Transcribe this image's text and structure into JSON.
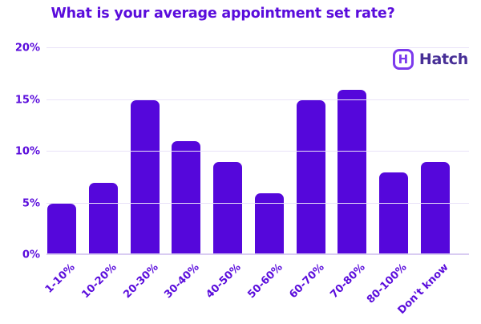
{
  "header": {
    "title": "What is your average appointment set rate?"
  },
  "logo": {
    "text": "Hatch",
    "icon_glyph": "H",
    "icon_color": "#7C3AED",
    "text_color": "#472F96"
  },
  "colors": {
    "bar": "#5507DB",
    "title_text": "#5A0CDC",
    "axis_text": "#5A0CDC",
    "gridline": "#E9E2F8",
    "baseline": "#D9CCF2",
    "background": "#FFFFFF"
  },
  "chart_data": {
    "type": "bar",
    "title": "What is your average appointment set rate?",
    "categories": [
      "1-10%",
      "10-20%",
      "20-30%",
      "30-40%",
      "40-50%",
      "50-60%",
      "60-70%",
      "70-80%",
      "80-100%",
      "Don't know"
    ],
    "values": [
      5,
      7,
      15,
      11,
      9,
      6,
      15,
      16,
      8,
      9
    ],
    "value_unit": "%",
    "xlabel": "",
    "ylabel": "",
    "ylim": [
      0,
      20
    ],
    "yticks": [
      0,
      5,
      10,
      15,
      20
    ],
    "ytick_labels": [
      "0%",
      "5%",
      "10%",
      "15%",
      "20%"
    ],
    "grid": true,
    "legend": "none",
    "bar_style": "rounded-top"
  }
}
